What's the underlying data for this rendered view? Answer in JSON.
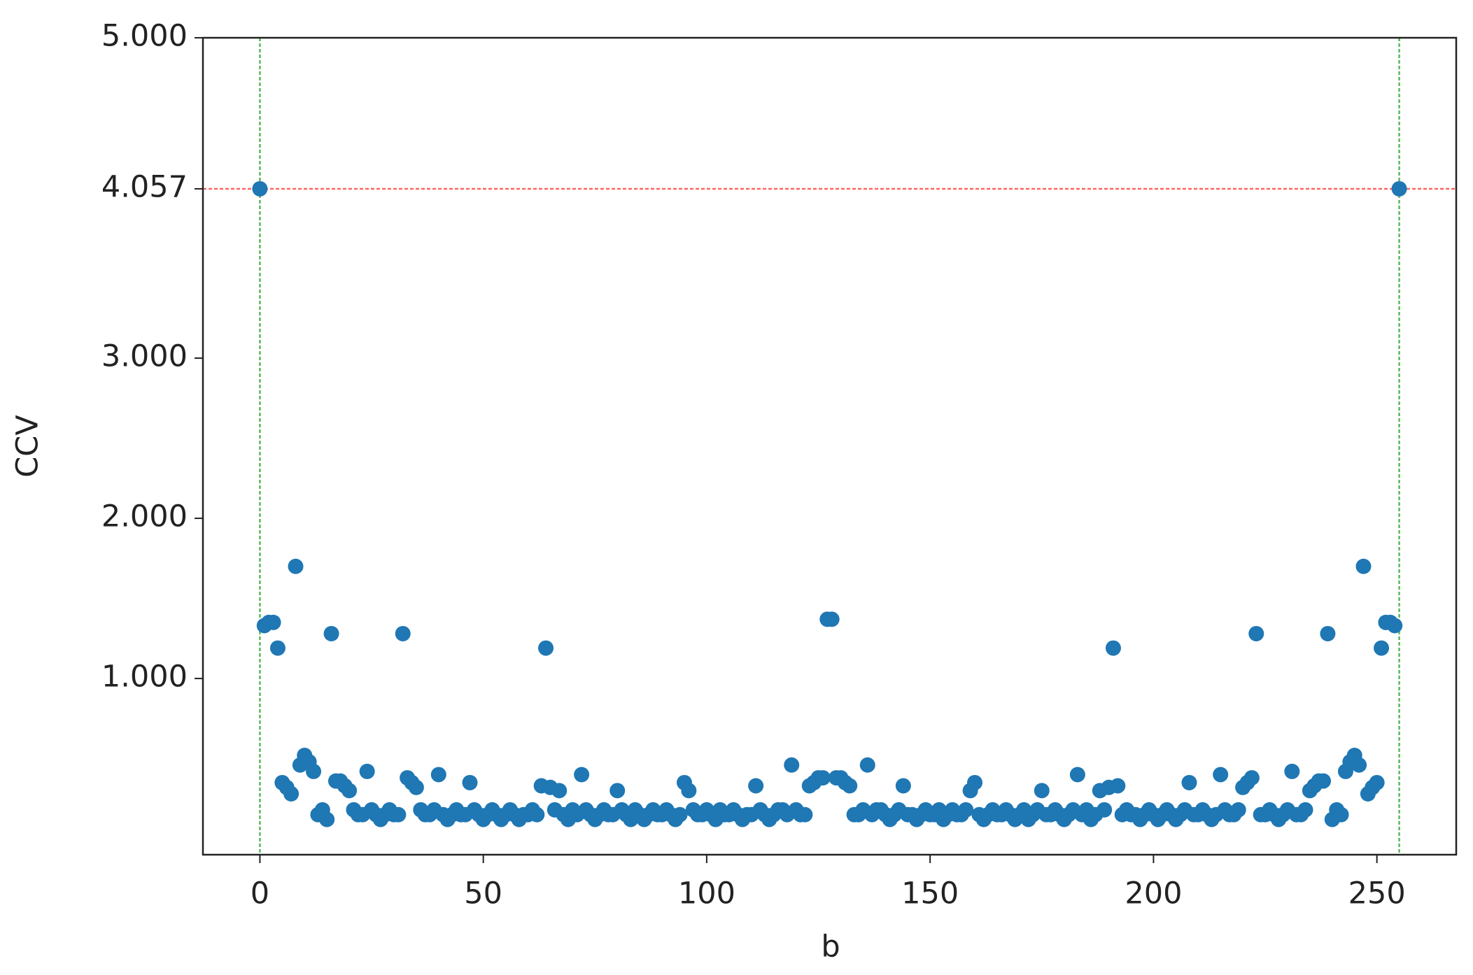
{
  "chart_data": {
    "type": "scatter",
    "xlabel": "b",
    "ylabel": "CCV",
    "color": "#1f77b4",
    "xlim": [
      -12.75,
      267.75
    ],
    "ylim": [
      -0.1,
      5
    ],
    "xticks": [
      0,
      50,
      100,
      150,
      200,
      250
    ],
    "yticks": [
      {
        "value": 1,
        "label": "1.000"
      },
      {
        "value": 2,
        "label": "2.000"
      },
      {
        "value": 3,
        "label": "3.000"
      },
      4.057,
      {
        "value": 5,
        "label": "5.000"
      }
    ],
    "hline": {
      "value": 4.057,
      "color": "#ff6666"
    },
    "vlines": {
      "values": [
        0,
        255
      ],
      "color": "#5cb85c"
    },
    "series": [
      {
        "x": [
          0,
          1,
          2,
          3,
          4,
          5,
          6,
          7,
          8,
          9,
          10,
          11,
          12,
          13,
          14,
          15,
          16,
          17,
          18,
          19,
          20,
          21,
          22,
          23,
          24,
          25,
          26,
          27,
          28,
          29,
          30,
          31,
          32,
          33,
          34,
          35,
          36,
          37,
          38,
          39,
          40,
          41,
          42,
          43,
          44,
          45,
          46,
          47,
          48,
          49,
          50,
          51,
          52,
          53,
          54,
          55,
          56,
          57,
          58,
          59,
          60,
          61,
          62,
          63,
          64,
          65,
          66,
          67,
          68,
          69,
          70,
          71,
          72,
          73,
          74,
          75,
          76,
          77,
          78,
          79,
          80,
          81,
          82,
          83,
          84,
          85,
          86,
          87,
          88,
          89,
          90,
          91,
          92,
          93,
          94,
          95,
          96,
          97,
          98,
          99,
          100,
          101,
          102,
          103,
          104,
          105,
          106,
          107,
          108,
          109,
          110,
          111,
          112,
          113,
          114,
          115,
          116,
          117,
          118,
          119,
          120,
          121,
          122,
          123,
          124,
          125,
          126,
          127,
          128,
          129,
          130,
          131,
          132,
          133,
          134,
          135,
          136,
          137,
          138,
          139,
          140,
          141,
          142,
          143,
          144,
          145,
          146,
          147,
          148,
          149,
          150,
          151,
          152,
          153,
          154,
          155,
          156,
          157,
          158,
          159,
          160,
          161,
          162,
          163,
          164,
          165,
          166,
          167,
          168,
          169,
          170,
          171,
          172,
          173,
          174,
          175,
          176,
          177,
          178,
          179,
          180,
          181,
          182,
          183,
          184,
          185,
          186,
          187,
          188,
          189,
          190,
          191,
          192,
          193,
          194,
          195,
          196,
          197,
          198,
          199,
          200,
          201,
          202,
          203,
          204,
          205,
          206,
          207,
          208,
          209,
          210,
          211,
          212,
          213,
          214,
          215,
          216,
          217,
          218,
          219,
          220,
          221,
          222,
          223,
          224,
          225,
          226,
          227,
          228,
          229,
          230,
          231,
          232,
          233,
          234,
          235,
          236,
          237,
          238,
          239,
          240,
          241,
          242,
          243,
          244,
          245,
          246,
          247,
          248,
          249,
          250,
          251,
          252,
          253,
          254,
          255
        ],
        "values": [
          4.057,
          1.33,
          1.35,
          1.35,
          1.19,
          0.35,
          0.32,
          0.28,
          1.7,
          0.46,
          0.52,
          0.48,
          0.42,
          0.15,
          0.18,
          0.12,
          1.28,
          0.36,
          0.36,
          0.33,
          0.3,
          0.18,
          0.15,
          0.15,
          0.42,
          0.18,
          0.15,
          0.12,
          0.15,
          0.18,
          0.15,
          0.15,
          1.28,
          0.38,
          0.35,
          0.32,
          0.18,
          0.15,
          0.15,
          0.18,
          0.4,
          0.15,
          0.12,
          0.15,
          0.18,
          0.15,
          0.15,
          0.35,
          0.18,
          0.15,
          0.12,
          0.15,
          0.18,
          0.15,
          0.12,
          0.15,
          0.18,
          0.15,
          0.12,
          0.15,
          0.15,
          0.18,
          0.15,
          0.33,
          1.19,
          0.32,
          0.18,
          0.3,
          0.15,
          0.12,
          0.18,
          0.15,
          0.4,
          0.18,
          0.15,
          0.12,
          0.15,
          0.18,
          0.15,
          0.15,
          0.3,
          0.18,
          0.15,
          0.12,
          0.18,
          0.15,
          0.12,
          0.15,
          0.18,
          0.15,
          0.15,
          0.18,
          0.15,
          0.12,
          0.15,
          0.35,
          0.3,
          0.18,
          0.15,
          0.15,
          0.18,
          0.15,
          0.12,
          0.18,
          0.15,
          0.15,
          0.18,
          0.15,
          0.12,
          0.15,
          0.15,
          0.33,
          0.18,
          0.15,
          0.12,
          0.15,
          0.18,
          0.18,
          0.15,
          0.46,
          0.18,
          0.15,
          0.15,
          0.33,
          0.35,
          0.38,
          0.38,
          1.37,
          1.37,
          0.38,
          0.38,
          0.35,
          0.33,
          0.15,
          0.15,
          0.18,
          0.46,
          0.15,
          0.18,
          0.18,
          0.15,
          0.12,
          0.15,
          0.18,
          0.33,
          0.15,
          0.15,
          0.12,
          0.15,
          0.18,
          0.15,
          0.15,
          0.18,
          0.12,
          0.15,
          0.18,
          0.15,
          0.15,
          0.18,
          0.3,
          0.35,
          0.15,
          0.12,
          0.15,
          0.18,
          0.15,
          0.15,
          0.18,
          0.15,
          0.12,
          0.15,
          0.18,
          0.12,
          0.15,
          0.18,
          0.3,
          0.15,
          0.15,
          0.18,
          0.15,
          0.12,
          0.15,
          0.18,
          0.4,
          0.15,
          0.18,
          0.12,
          0.15,
          0.3,
          0.18,
          0.32,
          1.19,
          0.33,
          0.15,
          0.18,
          0.15,
          0.15,
          0.12,
          0.15,
          0.18,
          0.15,
          0.12,
          0.15,
          0.18,
          0.15,
          0.12,
          0.15,
          0.18,
          0.35,
          0.15,
          0.15,
          0.18,
          0.15,
          0.12,
          0.15,
          0.4,
          0.18,
          0.15,
          0.15,
          0.18,
          0.32,
          0.35,
          0.38,
          1.28,
          0.15,
          0.15,
          0.18,
          0.15,
          0.12,
          0.15,
          0.18,
          0.42,
          0.15,
          0.15,
          0.18,
          0.3,
          0.33,
          0.36,
          0.36,
          1.28,
          0.12,
          0.18,
          0.15,
          0.42,
          0.48,
          0.52,
          0.46,
          1.7,
          0.28,
          0.32,
          0.35,
          1.19,
          1.35,
          1.35,
          1.33,
          4.057
        ]
      }
    ]
  }
}
